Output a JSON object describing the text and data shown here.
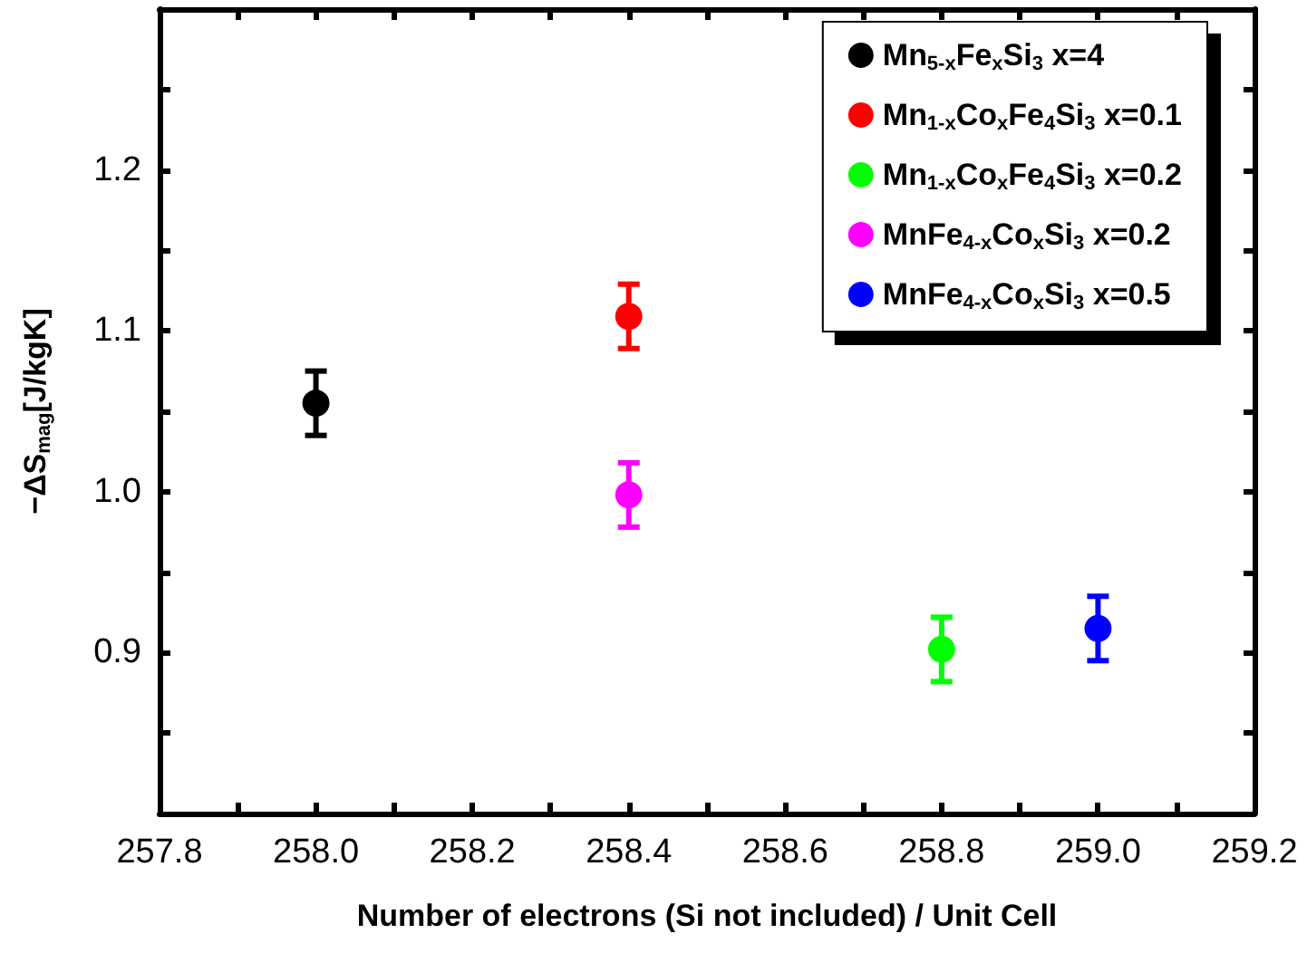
{
  "chart_data": {
    "type": "scatter",
    "xlabel": "Number of electrons (Si not included) / Unit Cell",
    "ylabel": "−ΔS$_{mag}$[J/kgK]",
    "xlim": [
      257.8,
      259.2
    ],
    "xticks": [
      257.8,
      {
        "value": 257.9,
        "label": null
      },
      {
        "value": 258,
        "label": "258.0"
      },
      {
        "value": 258.1,
        "label": null
      },
      258.2,
      {
        "value": 258.3,
        "label": null
      },
      258.4,
      {
        "value": 258.5,
        "label": null
      },
      258.6,
      {
        "value": 258.7,
        "label": null
      },
      258.8,
      {
        "value": 258.9,
        "label": null
      },
      {
        "value": 259,
        "label": "259.0"
      },
      {
        "value": 259.1,
        "label": null
      },
      259.2
    ],
    "ylim": [
      0.8,
      1.3
    ],
    "yticks": [
      {
        "value": 0.85,
        "label": null
      },
      0.9,
      {
        "value": 0.95,
        "label": null
      },
      {
        "value": 1,
        "label": "1.0"
      },
      {
        "value": 1.05,
        "label": null
      },
      1.1,
      {
        "value": 1.15,
        "label": null
      },
      1.2,
      {
        "value": 1.25,
        "label": null
      }
    ],
    "legend": "top right",
    "marker": "circle",
    "grid": false,
    "series": [
      {
        "name": "Mn$_{5-x}$Fe$_{x}$Si$_{3}$ x=4",
        "color": "#000000",
        "x": [
          258.0
        ],
        "values": [
          1.055
        ],
        "errors": [
          0.02
        ]
      },
      {
        "name": "Mn$_{1-x}$Co$_{x}$Fe$_{4}$Si$_{3}$ x=0.1",
        "color": "#ff0000",
        "x": [
          258.4
        ],
        "values": [
          1.109
        ],
        "errors": [
          0.02
        ]
      },
      {
        "name": "Mn$_{1-x}$Co$_{x}$Fe$_{4}$Si$_{3}$ x=0.2",
        "color": "#00ff00",
        "x": [
          258.8
        ],
        "values": [
          0.902
        ],
        "errors": [
          0.02
        ]
      },
      {
        "name": "MnFe$_{4-x}$Co$_{x}$Si$_{3}$ x=0.2",
        "color": "#ff00ff",
        "x": [
          258.4
        ],
        "values": [
          0.998
        ],
        "errors": [
          0.02
        ]
      },
      {
        "name": "MnFe$_{4-x}$Co$_{x}$Si$_{3}$ x=0.5",
        "color": "#0000ff",
        "x": [
          259.0
        ],
        "values": [
          0.915
        ],
        "errors": [
          0.02
        ]
      }
    ]
  }
}
